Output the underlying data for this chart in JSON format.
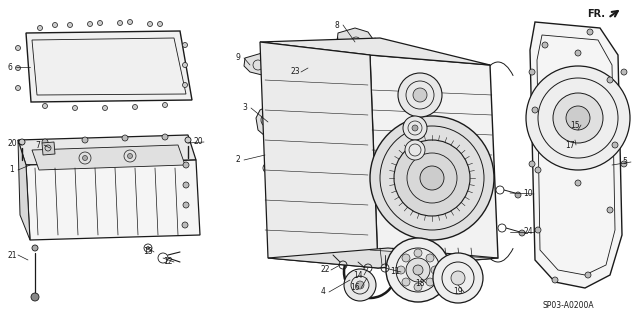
{
  "bg_color": "#ffffff",
  "line_color": "#1a1a1a",
  "fig_width": 6.4,
  "fig_height": 3.19,
  "dpi": 100,
  "diagram_code": "SP03-A0200A",
  "fr_label": "FR.",
  "fr_arrow_color": "#111111"
}
